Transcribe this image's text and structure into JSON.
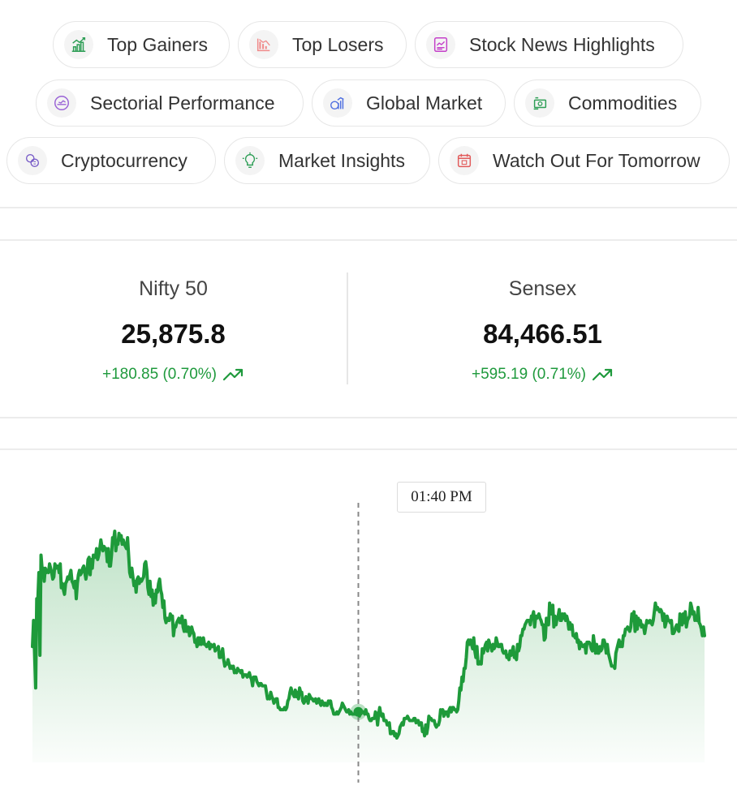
{
  "nav": {
    "chips": [
      {
        "label": "Top Gainers",
        "icon": "bar-chart-up-icon"
      },
      {
        "label": "Top Losers",
        "icon": "bar-chart-down-icon"
      },
      {
        "label": "Stock News Highlights",
        "icon": "news-icon"
      },
      {
        "label": "Sectorial Performance",
        "icon": "gauge-icon"
      },
      {
        "label": "Global Market",
        "icon": "globe-chart-icon"
      },
      {
        "label": "Commodities",
        "icon": "cash-icon"
      },
      {
        "label": "Cryptocurrency",
        "icon": "coins-icon"
      },
      {
        "label": "Market Insights",
        "icon": "bulb-icon"
      },
      {
        "label": "Watch Out For Tomorrow",
        "icon": "calendar-icon"
      }
    ]
  },
  "indices": [
    {
      "name": "Nifty 50",
      "value": "25,875.8",
      "change": "+180.85 (0.70%)"
    },
    {
      "name": "Sensex",
      "value": "84,466.51",
      "change": "+595.19 (0.71%)"
    }
  ],
  "tooltip": {
    "time": "01:40 PM"
  },
  "colors": {
    "up": "#1f9a3d",
    "line": "#1e9a3a"
  },
  "chart_data": {
    "type": "area",
    "series": [
      {
        "values": [
          46,
          58,
          43,
          27,
          68,
          67,
          80,
          42,
          88,
          82,
          82,
          76,
          82,
          80,
          81,
          80,
          84,
          82,
          80,
          77,
          78,
          84,
          82,
          83,
          83,
          80,
          84,
          73,
          75,
          72,
          70,
          75,
          76,
          78,
          77,
          79,
          81,
          76,
          75,
          73,
          76,
          68,
          75,
          79,
          81,
          79,
          80,
          82,
          83,
          80,
          77,
          80,
          86,
          87,
          79,
          86,
          82,
          88,
          87,
          87,
          91,
          86,
          88,
          91,
          95,
          92,
          90,
          92,
          91,
          91,
          85,
          91,
          83,
          83,
          88,
          96,
          95,
          99,
          90,
          94,
          93,
          98,
          95,
          97,
          93,
          95,
          93,
          92,
          91,
          96,
          88,
          80,
          78,
          82,
          78,
          74,
          76,
          71,
          77,
          78,
          75,
          77,
          76,
          77,
          78,
          84,
          85,
          81,
          73,
          70,
          76,
          69,
          72,
          65,
          70,
          66,
          72,
          71,
          75,
          77,
          72,
          70,
          64,
          67,
          59,
          57,
          59,
          58,
          58,
          61,
          60,
          60,
          51,
          55,
          55,
          57,
          58,
          59,
          57,
          57,
          60,
          55,
          53,
          58,
          53,
          53,
          55,
          51,
          52,
          55,
          53,
          52,
          48,
          49,
          46,
          50,
          47,
          50,
          47,
          48,
          50,
          47,
          47,
          46,
          47,
          48,
          45,
          47,
          46,
          46,
          47,
          44,
          45,
          45,
          46,
          41,
          41,
          43,
          45,
          40,
          37,
          38,
          38,
          40,
          38,
          36,
          37,
          36,
          37,
          34,
          35,
          34,
          36,
          35,
          35,
          34,
          35,
          32,
          33,
          33,
          33,
          32,
          33,
          34,
          32,
          31,
          28,
          32,
          32,
          32,
          30,
          29,
          28,
          29,
          29,
          28,
          28,
          28,
          28,
          25,
          22,
          23,
          22,
          25,
          23,
          22,
          20,
          21,
          22,
          22,
          18,
          18,
          17,
          17,
          17,
          17,
          18,
          17,
          18,
          21,
          22,
          25,
          27,
          25,
          24,
          23,
          26,
          23,
          25,
          22,
          27,
          25,
          25,
          21,
          20,
          21,
          23,
          22,
          20,
          24,
          23,
          22,
          22,
          21,
          21,
          22,
          20,
          21,
          22,
          20,
          19,
          21,
          20,
          19,
          20,
          19,
          19,
          21,
          20,
          21,
          18,
          17,
          15,
          15,
          15,
          16,
          15,
          16,
          17,
          18,
          20,
          19,
          18,
          17,
          16,
          16,
          17,
          15,
          16,
          15,
          15,
          15,
          15,
          15,
          16,
          16,
          14,
          16,
          16,
          16,
          16,
          15,
          17,
          15,
          15,
          13,
          12,
          12,
          13,
          13,
          13,
          16,
          15,
          10,
          15,
          18,
          15,
          14,
          15,
          12,
          12,
          12,
          10,
          10,
          11,
          6,
          6,
          7,
          7,
          5,
          6,
          4,
          5,
          6,
          9,
          10,
          11,
          10,
          13,
          13,
          13,
          14,
          13,
          12,
          12,
          12,
          12,
          13,
          13,
          11,
          12,
          12,
          10,
          11,
          11,
          7,
          8,
          5,
          10,
          6,
          9,
          14,
          13,
          13,
          12,
          12,
          12,
          10,
          9,
          10,
          10,
          12,
          17,
          16,
          17,
          14,
          16,
          15,
          16,
          14,
          17,
          18,
          16,
          18,
          18,
          17,
          17,
          16,
          17,
          21,
          27,
          26,
          32,
          30,
          36,
          36,
          41,
          48,
          49,
          47,
          49,
          47,
          45,
          50,
          44,
          41,
          46,
          38,
          38,
          39,
          38,
          45,
          43,
          45,
          47,
          48,
          44,
          49,
          47,
          46,
          44,
          47,
          45,
          46,
          50,
          48,
          46,
          46,
          47,
          47,
          44,
          43,
          43,
          44,
          41,
          42,
          40,
          44,
          42,
          44,
          46,
          41,
          41,
          40,
          47,
          44,
          46,
          51,
          51,
          54,
          54,
          56,
          57,
          58,
          58,
          58,
          56,
          60,
          60,
          62,
          55,
          60,
          59,
          60,
          61,
          59,
          58,
          56,
          56,
          49,
          50,
          59,
          57,
          56,
          66,
          61,
          61,
          65,
          55,
          60,
          56,
          59,
          60,
          63,
          58,
          58,
          61,
          59,
          61,
          58,
          60,
          58,
          54,
          57,
          54,
          56,
          51,
          51,
          50,
          52,
          48,
          49,
          45,
          48,
          47,
          46,
          46,
          47,
          43,
          48,
          48,
          48,
          47,
          45,
          44,
          51,
          47,
          43,
          47,
          43,
          43,
          46,
          44,
          45,
          49,
          49,
          47,
          43,
          47,
          43,
          41,
          39,
          37,
          37,
          37,
          36,
          43,
          45,
          47,
          49,
          46,
          48,
          46,
          51,
          51,
          54,
          54,
          55,
          54,
          53,
          55,
          61,
          58,
          62,
          53,
          60,
          54,
          59,
          56,
          58,
          55,
          56,
          55,
          52,
          55,
          58,
          57,
          57,
          58,
          57,
          56,
          58,
          62,
          66,
          63,
          64,
          63,
          62,
          63,
          62,
          58,
          61,
          55,
          57,
          60,
          58,
          58,
          57,
          58,
          52,
          52,
          53,
          55,
          56,
          54,
          53,
          61,
          58,
          56,
          61,
          57,
          62,
          55,
          58,
          59,
          60,
          66,
          64,
          61,
          62,
          58,
          60,
          58,
          64,
          57,
          56,
          54,
          51,
          55,
          51
        ]
      }
    ],
    "marker": {
      "label": "01:40 PM",
      "index": 305
    }
  }
}
